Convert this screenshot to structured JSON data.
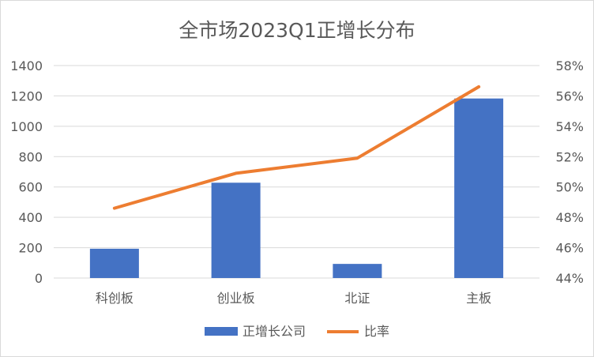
{
  "chart_data": {
    "type": "bar",
    "title": "全市场2023Q1正增长分布",
    "categories": [
      "科创板",
      "创业板",
      "北证",
      "主板"
    ],
    "series": [
      {
        "name": "正增长公司",
        "type": "bar",
        "axis": "left",
        "color": "#4472C4",
        "values": [
          193,
          628,
          93,
          1183
        ]
      },
      {
        "name": "比率",
        "type": "line",
        "axis": "right",
        "color": "#ED7D31",
        "values": [
          48.6,
          50.9,
          51.9,
          56.6
        ]
      }
    ],
    "y_left": {
      "ylim": [
        0,
        1400
      ],
      "ticks": [
        0,
        200,
        400,
        600,
        800,
        1000,
        1200,
        1400
      ]
    },
    "y_right": {
      "ylim": [
        44,
        58
      ],
      "ticks": [
        44,
        46,
        48,
        50,
        52,
        54,
        56,
        58
      ],
      "suffix": "%"
    },
    "grid": true,
    "legend": "bottom"
  }
}
